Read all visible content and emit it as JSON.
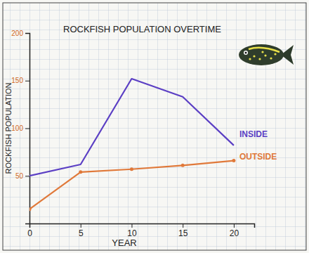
{
  "chart_data": {
    "type": "line",
    "title": "ROCKFISH POPULATION OVERTIME",
    "x_label": "YEAR",
    "y_label": "ROCKFISH POPULATION",
    "x": [
      0,
      5,
      10,
      15,
      20
    ],
    "series": [
      {
        "name": "INSIDE",
        "color": "#5b3fc4",
        "values": [
          50,
          62,
          152,
          133,
          82
        ]
      },
      {
        "name": "OUTSIDE",
        "color": "#e0793a",
        "marker": "circle",
        "values": [
          15,
          54,
          57,
          61,
          66
        ]
      }
    ],
    "xlim": [
      0,
      22
    ],
    "xticks": [
      0,
      5,
      10,
      15,
      20
    ],
    "ylim": [
      0,
      200
    ],
    "yticks": [
      50,
      100,
      150,
      200
    ]
  }
}
